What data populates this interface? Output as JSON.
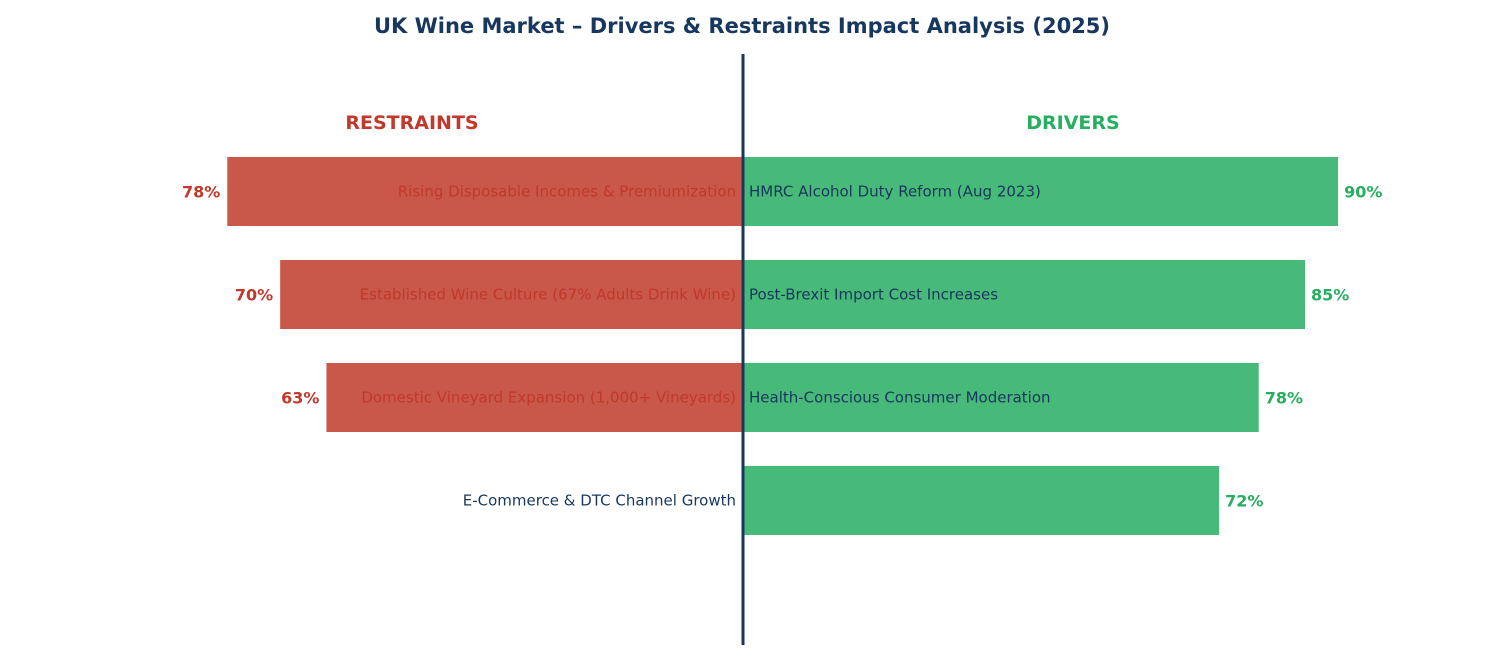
{
  "colors": {
    "title": "#17375e",
    "restraint_bar": "#c9574a",
    "restraint_text": "#c0392b",
    "driver_bar": "#47b978",
    "driver_text": "#27ae60",
    "axis": "#17375e",
    "label_text": "#17375e"
  },
  "chart_data": {
    "type": "bar",
    "orientation": "horizontal-diverging",
    "title": "UK Wine Market – Drivers & Restraints Impact Analysis (2025)",
    "restraints_heading": "RESTRAINTS",
    "drivers_heading": "DRIVERS",
    "xlim": [
      -90,
      100
    ],
    "grid": false,
    "restraints": [
      {
        "label": "Rising Disposable Incomes & Premiumization",
        "value": 78,
        "value_label": "78%"
      },
      {
        "label": "Established Wine Culture (67% Adults Drink Wine)",
        "value": 70,
        "value_label": "70%"
      },
      {
        "label": "Domestic Vineyard Expansion (1,000+ Vineyards)",
        "value": 63,
        "value_label": "63%"
      },
      {
        "label": "E-Commerce & DTC Channel Growth",
        "value": null,
        "value_label": ""
      }
    ],
    "drivers": [
      {
        "label": "HMRC Alcohol Duty Reform (Aug 2023)",
        "value": 90,
        "value_label": "90%"
      },
      {
        "label": "Post-Brexit Import Cost Increases",
        "value": 85,
        "value_label": "85%"
      },
      {
        "label": "Health-Conscious Consumer Moderation",
        "value": 78,
        "value_label": "78%"
      },
      {
        "label": "",
        "value": 72,
        "value_label": "72%"
      }
    ]
  }
}
